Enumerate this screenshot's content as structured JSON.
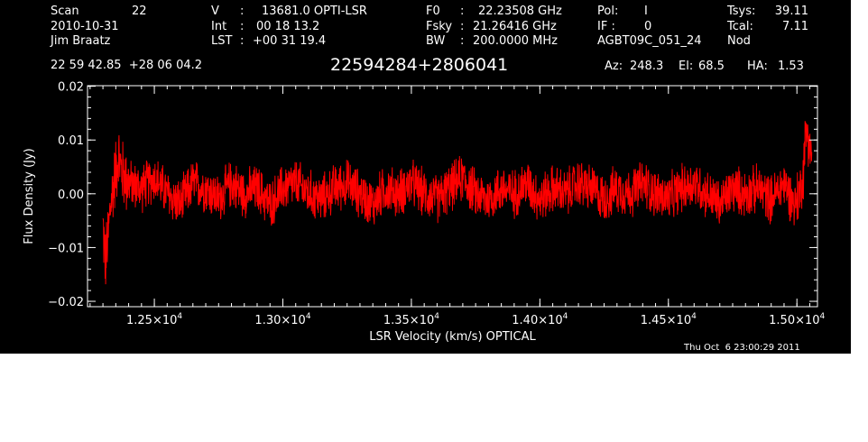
{
  "header": {
    "scan_label": "Scan",
    "scan_value": "22",
    "date": "2010-10-31",
    "observer": "Jim Braatz",
    "v_label": "V",
    "v_sep": ":",
    "v_value": "13681.0 OPTI-LSR",
    "int_label": "Int",
    "int_sep": ":",
    "int_value": "00 18 13.2",
    "lst_label": "LST",
    "lst_sep": ":",
    "lst_value": "+00 31 19.4",
    "f0_label": "F0",
    "f0_sep": ":",
    "f0_value": "22.23508 GHz",
    "fsky_label": "Fsky",
    "fsky_sep": ":",
    "fsky_value": "21.26416 GHz",
    "bw_label": "BW",
    "bw_sep": ":",
    "bw_value": "200.0000 MHz",
    "pol_label": "Pol:",
    "pol_value": "I",
    "if_label": "IF :",
    "if_value": "0",
    "project": "AGBT09C_051_24",
    "proc": "Nod",
    "tsys_label": "Tsys:",
    "tsys_value": "39.11",
    "tcal_label": "Tcal:",
    "tcal_value": "7.11",
    "coords": "22 59 42.85  +28 06 04.2",
    "source": "22594284+2806041",
    "az_label": "Az:",
    "az_value": "248.3",
    "el_label": "El:",
    "el_value": "68.5",
    "ha_label": "HA:",
    "ha_value": "1.53"
  },
  "footer": {
    "timestamp": "Thu Oct  6 23:00:29 2011"
  },
  "colors": {
    "background": "#000000",
    "axes": "#ffffff",
    "trace": "#ff0000",
    "text": "#ffffff"
  },
  "chart_data": {
    "type": "line",
    "xlabel": "LSR Velocity (km/s) OPTICAL",
    "ylabel": "Flux Density (Jy)",
    "xlim": [
      12240,
      15080
    ],
    "ylim": [
      -0.021,
      0.0201
    ],
    "x_ticks": [
      12500,
      13000,
      13500,
      14000,
      14500,
      15000
    ],
    "x_tick_labels": [
      {
        "mant": "1.25×10",
        "exp": "4"
      },
      {
        "mant": "1.30×10",
        "exp": "4"
      },
      {
        "mant": "1.35×10",
        "exp": "4"
      },
      {
        "mant": "1.40×10",
        "exp": "4"
      },
      {
        "mant": "1.45×10",
        "exp": "4"
      },
      {
        "mant": "1.50×10",
        "exp": "4"
      }
    ],
    "y_ticks": [
      -0.02,
      -0.01,
      0.0,
      0.01,
      0.02
    ],
    "y_tick_labels": [
      "−0.02",
      "−0.01",
      "0.00",
      "0.01",
      "0.02"
    ],
    "series": [
      {
        "x": [
          12300,
          12310,
          12320,
          12330,
          12345,
          12360,
          12375,
          12400,
          12450,
          12500,
          12550,
          12600,
          12650,
          12700,
          12750,
          12800,
          12850,
          12900,
          12950,
          13000,
          13050,
          13100,
          13150,
          13200,
          13250,
          13300,
          13350,
          13400,
          13450,
          13500,
          13550,
          13600,
          13650,
          13700,
          13750,
          13800,
          13850,
          13900,
          13950,
          14000,
          14050,
          14100,
          14150,
          14200,
          14250,
          14300,
          14350,
          14400,
          14450,
          14500,
          14550,
          14600,
          14650,
          14700,
          14750,
          14800,
          14850,
          14900,
          14950,
          14990,
          15010,
          15025,
          15030,
          15040,
          15050,
          15058
        ],
        "y": [
          -0.006,
          -0.013,
          -0.008,
          -0.002,
          0.003,
          0.007,
          0.004,
          0.002,
          0.001,
          0.003,
          0.0,
          -0.002,
          0.002,
          0.001,
          -0.001,
          0.002,
          0.0,
          0.001,
          -0.002,
          0.001,
          0.002,
          0.0,
          -0.001,
          0.001,
          0.002,
          0.0,
          -0.002,
          0.001,
          0.0,
          0.002,
          0.0,
          -0.001,
          0.001,
          0.003,
          0.0,
          -0.001,
          0.001,
          0.0,
          0.002,
          -0.001,
          0.001,
          0.0,
          0.002,
          0.001,
          -0.001,
          0.001,
          0.0,
          0.002,
          0.0,
          -0.001,
          0.001,
          0.002,
          0.0,
          -0.002,
          0.001,
          0.0,
          0.001,
          -0.001,
          0.002,
          -0.002,
          0.0,
          0.004,
          0.009,
          0.012,
          0.009,
          0.007
        ]
      }
    ],
    "grid": false,
    "legend": "none"
  }
}
